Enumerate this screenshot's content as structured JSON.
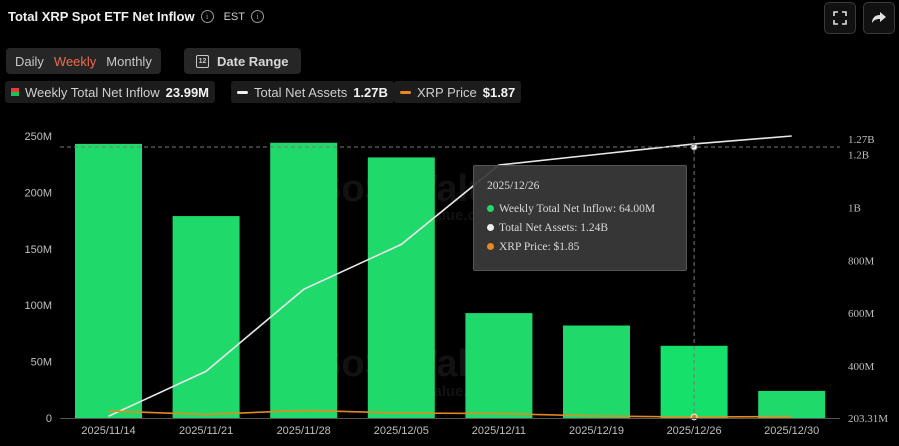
{
  "header": {
    "title": "Total XRP Spot ETF Net Inflow",
    "timezone": "EST",
    "fullscreen_icon": "fullscreen-icon",
    "share_icon": "share-icon"
  },
  "tabs": [
    {
      "label": "Daily",
      "active": false
    },
    {
      "label": "Weekly",
      "active": true
    },
    {
      "label": "Monthly",
      "active": false
    }
  ],
  "date_range_label": "Date Range",
  "legend": {
    "inflow_label": "Weekly Total Net Inflow",
    "inflow_value": "23.99M",
    "assets_label": "Total Net Assets",
    "assets_value": "1.27B",
    "price_label": "XRP Price",
    "price_value": "$1.87"
  },
  "tooltip": {
    "date": "2025/12/26",
    "inflow": "Weekly Total Net Inflow: 64.00M",
    "assets": "Total Net Assets: 1.24B",
    "price": "XRP Price: $1.85"
  },
  "watermark": {
    "brand": "SoSoValue",
    "url": "sosovalue.com"
  },
  "colors": {
    "bar": "#1fd96a",
    "bar_highlight": "#14e06a",
    "assets_line": "#e8e8e8",
    "price_line": "#e8891f",
    "accent": "#f06a4a"
  },
  "chart_data": {
    "type": "bar",
    "categories": [
      "2025/11/14",
      "2025/11/21",
      "2025/11/28",
      "2025/12/05",
      "2025/12/11",
      "2025/12/19",
      "2025/12/26",
      "2025/12/30"
    ],
    "series": [
      {
        "name": "Weekly Total Net Inflow",
        "axis": "left",
        "type": "bar",
        "values": [
          243,
          179,
          244,
          231,
          93,
          82,
          64.0,
          23.99
        ]
      },
      {
        "name": "Total Net Assets",
        "axis": "right",
        "type": "line",
        "values": [
          0.21,
          0.38,
          0.69,
          0.86,
          1.16,
          1.2,
          1.24,
          1.27
        ]
      },
      {
        "name": "XRP Price",
        "axis": "right-hidden",
        "type": "line",
        "values": [
          2.15,
          1.98,
          2.18,
          2.05,
          2.02,
          1.9,
          1.85,
          1.87
        ]
      }
    ],
    "left_axis": {
      "ticks": [
        "0",
        "50M",
        "100M",
        "150M",
        "200M",
        "250M"
      ],
      "range": [
        0,
        250
      ]
    },
    "right_axis": {
      "ticks": [
        "203.31M",
        "400M",
        "600M",
        "800M",
        "1B",
        "1.2B",
        "1.27B"
      ]
    },
    "grid": false
  }
}
